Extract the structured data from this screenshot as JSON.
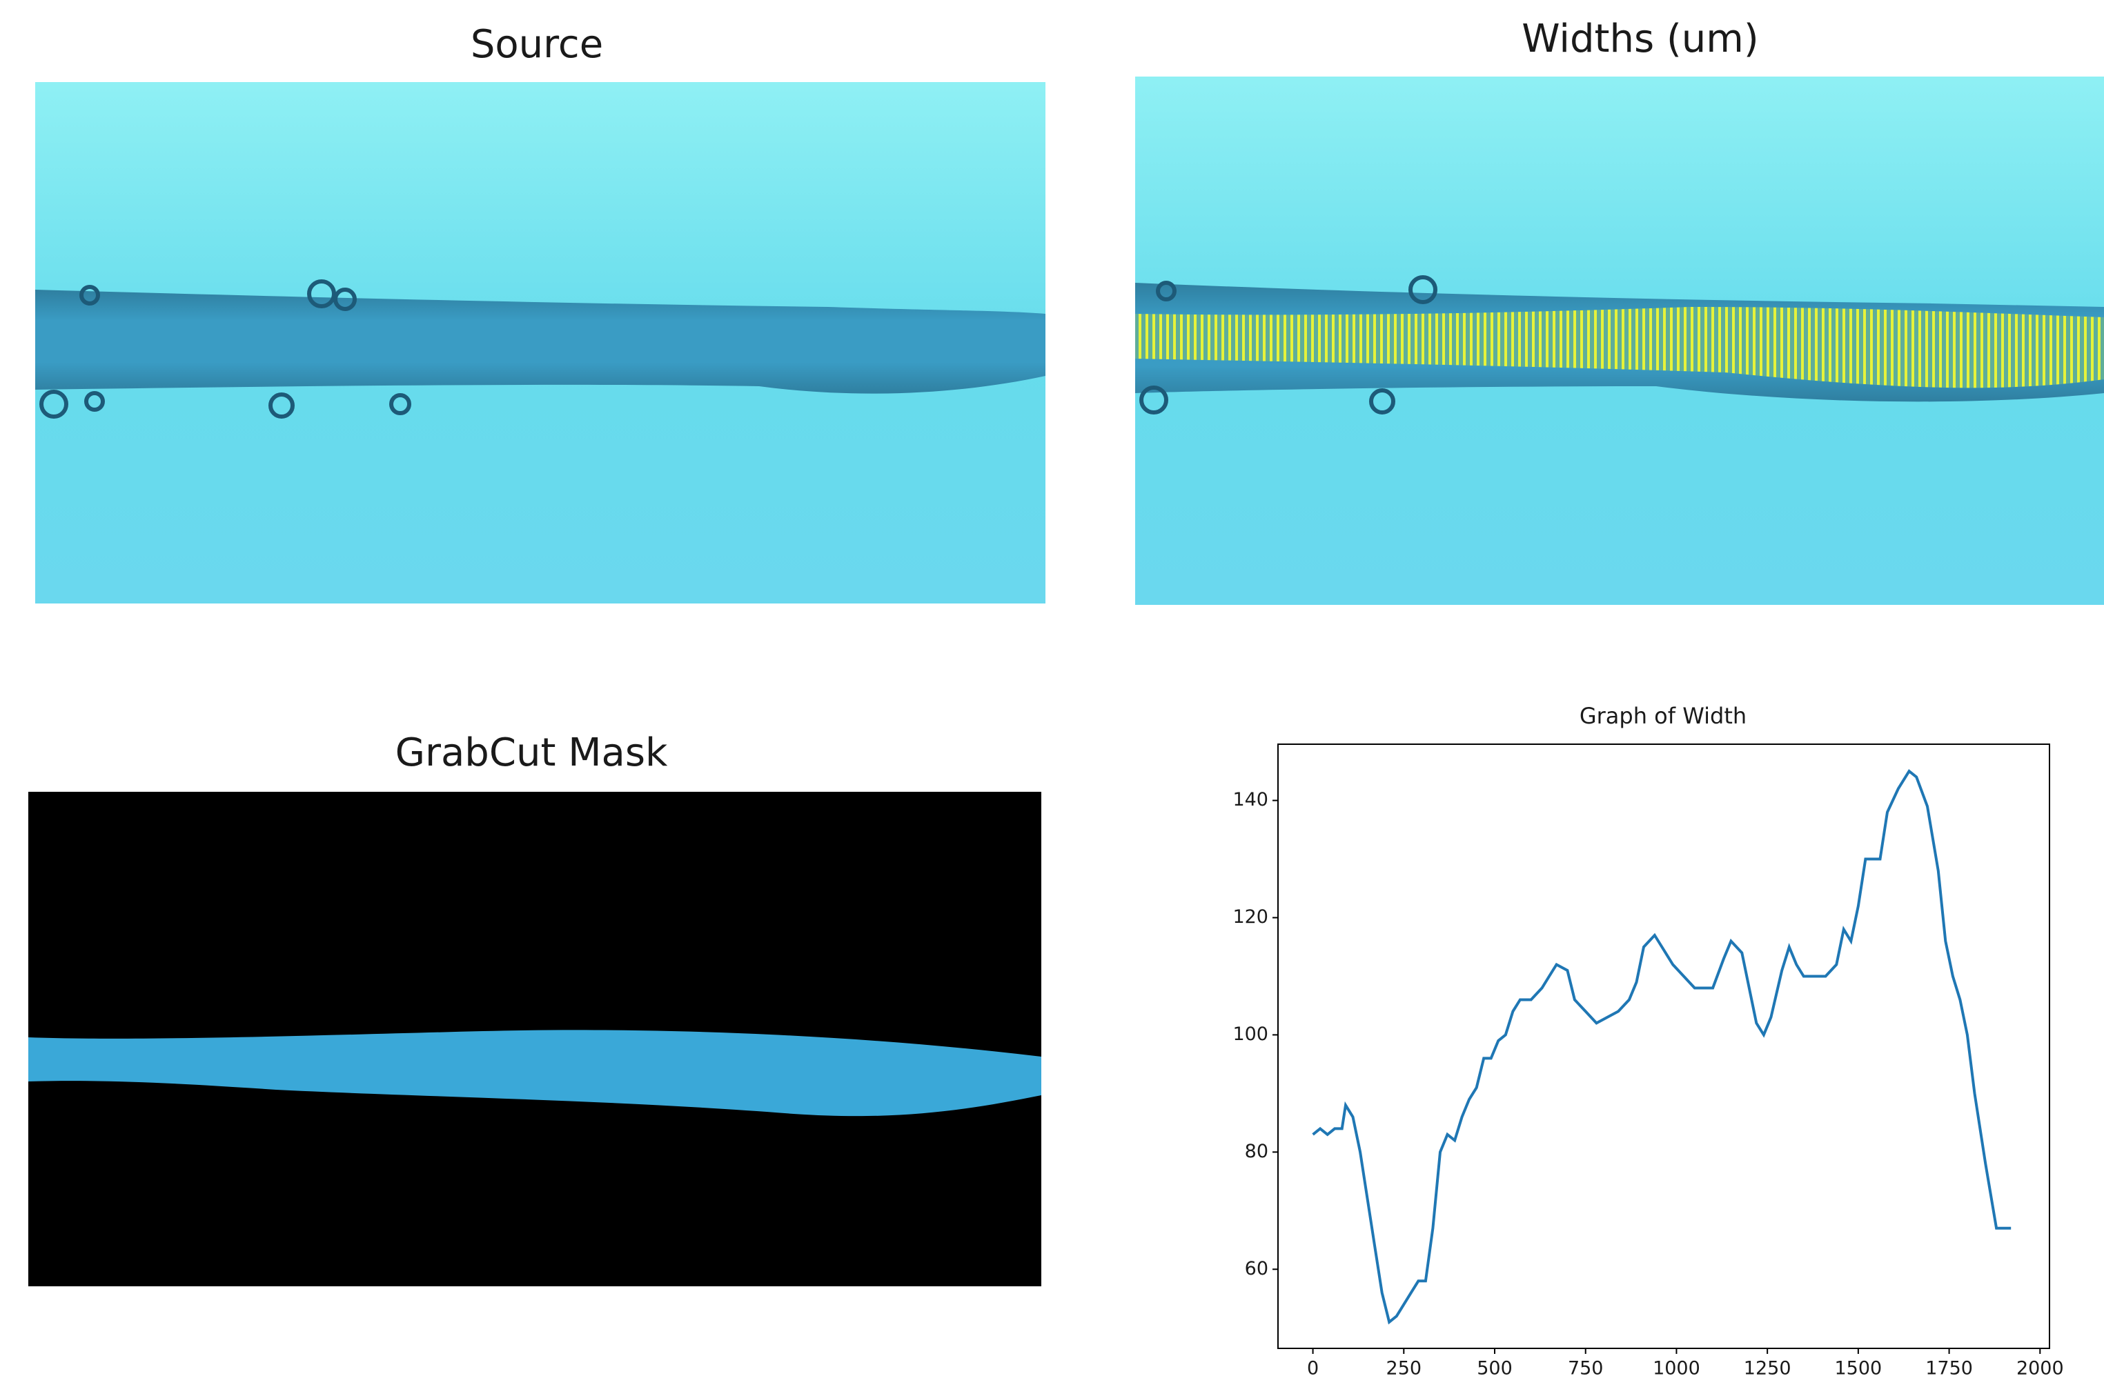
{
  "panels": [
    {
      "title": "Source"
    },
    {
      "title": "Widths (um)"
    },
    {
      "title": "GrabCut Mask"
    }
  ],
  "chart_data": {
    "type": "line",
    "title": "Graph of Width",
    "color": "#1f77b4",
    "x": [
      0,
      20,
      40,
      60,
      80,
      90,
      110,
      130,
      150,
      170,
      190,
      210,
      230,
      250,
      270,
      290,
      310,
      330,
      350,
      370,
      390,
      410,
      430,
      450,
      470,
      490,
      510,
      530,
      550,
      570,
      600,
      630,
      650,
      670,
      700,
      720,
      750,
      780,
      810,
      840,
      870,
      890,
      910,
      940,
      960,
      990,
      1020,
      1050,
      1100,
      1130,
      1150,
      1180,
      1200,
      1220,
      1240,
      1260,
      1290,
      1310,
      1330,
      1350,
      1380,
      1410,
      1440,
      1460,
      1480,
      1500,
      1520,
      1560,
      1580,
      1610,
      1640,
      1660,
      1690,
      1720,
      1740,
      1760,
      1780,
      1800,
      1820,
      1850,
      1880,
      1920
    ],
    "values": [
      83,
      84,
      83,
      84,
      84,
      88,
      86,
      80,
      72,
      64,
      56,
      51,
      52,
      54,
      56,
      58,
      58,
      67,
      80,
      83,
      82,
      86,
      89,
      91,
      96,
      96,
      99,
      100,
      104,
      106,
      106,
      108,
      110,
      112,
      111,
      106,
      104,
      102,
      103,
      104,
      106,
      109,
      115,
      117,
      115,
      112,
      110,
      108,
      108,
      113,
      116,
      114,
      108,
      102,
      100,
      103,
      111,
      115,
      112,
      110,
      110,
      110,
      112,
      118,
      116,
      122,
      130,
      130,
      138,
      142,
      145,
      144,
      139,
      128,
      116,
      110,
      106,
      100,
      90,
      78,
      67,
      67
    ],
    "xlim": [
      -96,
      2026
    ],
    "xticks": [
      0,
      250,
      500,
      750,
      1000,
      1250,
      1500,
      1750,
      2000
    ],
    "ylim": [
      46.5,
      149.6
    ],
    "yticks": [
      60,
      80,
      100,
      120,
      140
    ]
  }
}
